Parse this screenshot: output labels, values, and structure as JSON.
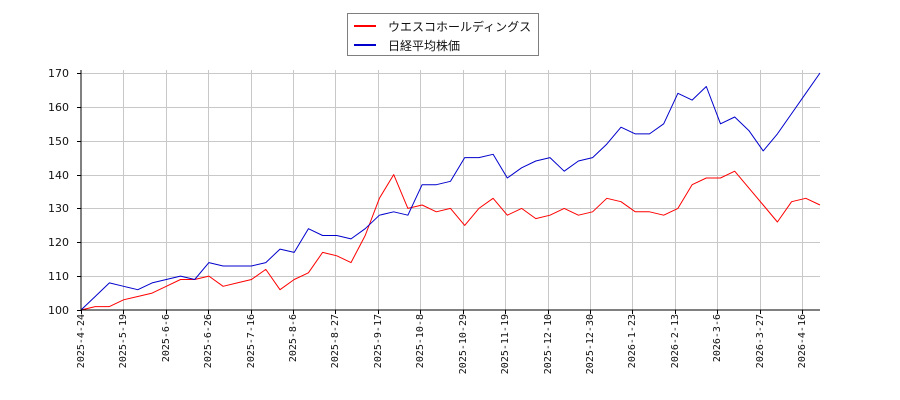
{
  "legend": {
    "items": [
      {
        "label": "ウエスコホールディングス",
        "color": "#ff0000"
      },
      {
        "label": "日経平均株価",
        "color": "#0000cc"
      }
    ]
  },
  "axes": {
    "y_ticks": [
      "100",
      "110",
      "120",
      "130",
      "140",
      "150",
      "160",
      "170"
    ],
    "x_ticks": [
      "2025-4-24",
      "2025-5-19",
      "2025-6-6",
      "2025-6-26",
      "2025-7-16",
      "2025-8-6",
      "2025-8-27",
      "2025-9-17",
      "2025-10-8",
      "2025-10-29",
      "2025-11-19",
      "2025-12-10",
      "2025-12-30",
      "2026-1-23",
      "2026-2-13",
      "2026-3-6",
      "2026-3-27",
      "2026-4-16"
    ]
  },
  "chart_data": {
    "type": "line",
    "title": "",
    "xlabel": "",
    "ylabel": "",
    "ylim": [
      100,
      170
    ],
    "grid": true,
    "legend_position": "top-center",
    "x_tick_labels": [
      "2025-4-24",
      "2025-5-19",
      "2025-6-6",
      "2025-6-26",
      "2025-7-16",
      "2025-8-6",
      "2025-8-27",
      "2025-9-17",
      "2025-10-8",
      "2025-10-29",
      "2025-11-19",
      "2025-12-10",
      "2025-12-30",
      "2026-1-23",
      "2026-2-13",
      "2026-3-6",
      "2026-3-27",
      "2026-4-16"
    ],
    "x": [
      0,
      1,
      2,
      3,
      4,
      5,
      6,
      7,
      8,
      9,
      10,
      11,
      12,
      13,
      14,
      15,
      16,
      17,
      18,
      19,
      20,
      21,
      22,
      23,
      24,
      25,
      26,
      27,
      28,
      29,
      30,
      31,
      32,
      33,
      34,
      35,
      36,
      37,
      38,
      39,
      40,
      41,
      42,
      43,
      44,
      45,
      46,
      47,
      48,
      49,
      50,
      51,
      52
    ],
    "series": [
      {
        "name": "ウエスコホールディングス",
        "color": "#ff0000",
        "values": [
          100,
          101,
          101,
          103,
          104,
          105,
          107,
          109,
          109,
          110,
          107,
          108,
          109,
          112,
          106,
          109,
          111,
          117,
          116,
          114,
          122,
          133,
          140,
          130,
          131,
          129,
          130,
          125,
          130,
          133,
          128,
          130,
          127,
          128,
          130,
          128,
          129,
          133,
          132,
          129,
          129,
          128,
          130,
          137,
          139,
          139,
          141,
          136,
          131,
          126,
          132,
          133,
          131
        ]
      },
      {
        "name": "日経平均株価",
        "color": "#0000cc",
        "values": [
          100,
          104,
          108,
          107,
          106,
          108,
          109,
          110,
          109,
          114,
          113,
          113,
          113,
          114,
          118,
          117,
          124,
          122,
          122,
          121,
          124,
          128,
          129,
          128,
          137,
          137,
          138,
          145,
          145,
          146,
          139,
          142,
          144,
          145,
          141,
          144,
          145,
          149,
          154,
          152,
          152,
          155,
          164,
          162,
          166,
          155,
          157,
          153,
          147,
          152,
          158,
          164,
          170
        ]
      }
    ]
  }
}
